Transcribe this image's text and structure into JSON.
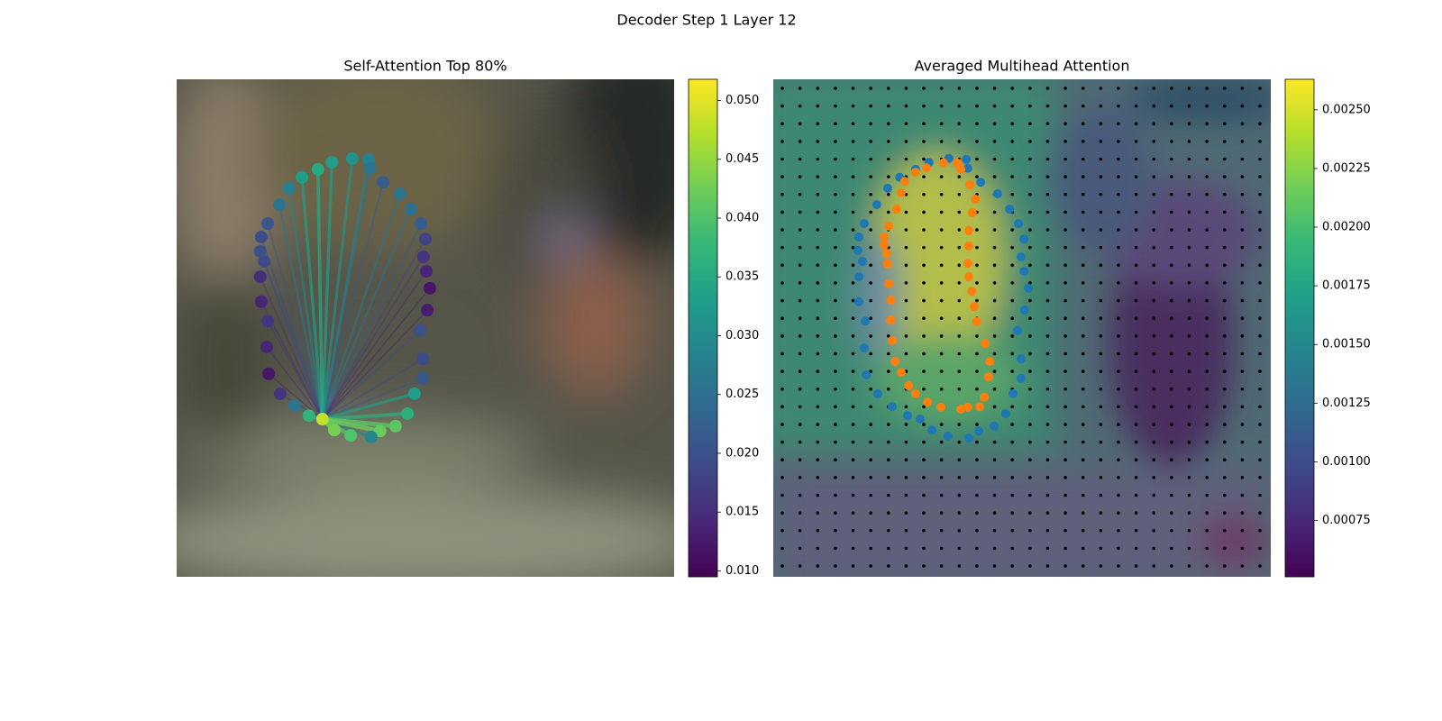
{
  "title": "Decoder Step 1 Layer 12",
  "chart_data": [
    {
      "type": "attention",
      "title": "Self-Attention Top 80%",
      "colormap": "viridis",
      "x": [
        35.3,
        38.6,
        38.9,
        41.5,
        44.9,
        47.1,
        49.1,
        50.0,
        49.6,
        50.2,
        50.9,
        50.4,
        48.9,
        49.5,
        49.5,
        47.8,
        46.4,
        44.0,
        40.9,
        39.1,
        35.0,
        31.7,
        29.3,
        26.6,
        23.7,
        20.8,
        18.5,
        18.1,
        18.3,
        17.0,
        16.8,
        17.6,
        16.8,
        17.0,
        18.3,
        20.7,
        22.6,
        25.2,
        28.4,
        31.2
      ],
      "y": [
        15.9,
        16.1,
        17.9,
        20.7,
        23.0,
        26.1,
        29.0,
        32.1,
        35.7,
        38.6,
        42.0,
        46.4,
        50.5,
        56.2,
        60.1,
        63.2,
        67.2,
        69.7,
        70.7,
        71.9,
        71.6,
        70.5,
        68.3,
        67.6,
        65.6,
        63.2,
        59.2,
        53.8,
        48.6,
        44.7,
        39.7,
        36.6,
        34.6,
        31.7,
        29.0,
        25.2,
        21.9,
        19.7,
        18.1,
        16.7
      ],
      "values": [
        0.031,
        0.028,
        0.026,
        0.022,
        0.026,
        0.025,
        0.022,
        0.018,
        0.016,
        0.014,
        0.012,
        0.013,
        0.02,
        0.019,
        0.021,
        0.033,
        0.036,
        0.041,
        0.042,
        0.029,
        0.04,
        0.043,
        0.048,
        0.037,
        0.026,
        0.016,
        0.012,
        0.014,
        0.016,
        0.014,
        0.015,
        0.019,
        0.02,
        0.019,
        0.021,
        0.026,
        0.028,
        0.033,
        0.035,
        0.033
      ],
      "clim": [
        0.0095,
        0.0518
      ],
      "cticks": [
        {
          "value": 0.01,
          "label": "0.010"
        },
        {
          "value": 0.015,
          "label": "0.015"
        },
        {
          "value": 0.02,
          "label": "0.020"
        },
        {
          "value": 0.025,
          "label": "0.025"
        },
        {
          "value": 0.03,
          "label": "0.030"
        },
        {
          "value": 0.035,
          "label": "0.035"
        },
        {
          "value": 0.04,
          "label": "0.040"
        },
        {
          "value": 0.045,
          "label": "0.045"
        },
        {
          "value": 0.05,
          "label": "0.050"
        }
      ]
    },
    {
      "type": "heatmap-scatter",
      "title": "Averaged Multihead Attention",
      "colormap": "viridis",
      "series": [
        {
          "color": "#1f77b4",
          "x": [
            35.3,
            38.8,
            39.1,
            41.7,
            45.1,
            47.5,
            49.3,
            50.4,
            49.8,
            50.4,
            51.3,
            50.5,
            49.1,
            49.8,
            49.8,
            48.2,
            46.7,
            44.4,
            41.3,
            39.3,
            35.1,
            31.9,
            29.5,
            27.0,
            23.9,
            21.0,
            18.7,
            18.3,
            18.5,
            17.2,
            17.2,
            17.9,
            17.0,
            17.2,
            18.3,
            20.8,
            23.0,
            25.4,
            28.6,
            31.3
          ],
          "y": [
            15.9,
            16.1,
            17.9,
            20.7,
            23.0,
            26.1,
            29.0,
            32.1,
            35.7,
            38.6,
            42.0,
            46.4,
            50.5,
            56.2,
            60.1,
            63.2,
            67.2,
            69.7,
            70.7,
            72.1,
            71.7,
            70.5,
            68.3,
            67.6,
            65.8,
            63.2,
            59.4,
            54.0,
            48.6,
            44.7,
            39.7,
            36.6,
            34.4,
            31.7,
            29.0,
            25.2,
            21.9,
            19.7,
            18.1,
            16.7
          ]
        },
        {
          "color": "#ff7f0e",
          "x": [
            34.2,
            37.0,
            37.7,
            39.5,
            40.6,
            40.0,
            39.3,
            39.3,
            39.1,
            39.3,
            39.9,
            40.4,
            40.9,
            42.6,
            43.5,
            43.3,
            42.4,
            41.5,
            39.1,
            37.7,
            33.7,
            31.0,
            28.6,
            27.2,
            25.7,
            24.5,
            23.9,
            23.6,
            23.7,
            23.2,
            23.0,
            22.8,
            22.3,
            22.3,
            23.2,
            24.8,
            25.7,
            26.4,
            28.6,
            30.8
          ],
          "y": [
            16.8,
            16.8,
            18.1,
            21.2,
            24.1,
            26.8,
            30.4,
            33.5,
            37.0,
            39.7,
            42.6,
            45.7,
            48.7,
            53.1,
            56.7,
            59.8,
            63.9,
            65.8,
            65.9,
            66.3,
            65.9,
            64.9,
            63.2,
            61.6,
            58.9,
            56.7,
            52.5,
            48.4,
            44.4,
            41.1,
            37.1,
            35.0,
            33.3,
            31.7,
            29.5,
            26.1,
            22.8,
            20.5,
            18.7,
            17.8
          ]
        }
      ],
      "clim": [
        0.00051,
        0.00263
      ],
      "cticks": [
        {
          "value": 0.00075,
          "label": "0.00075"
        },
        {
          "value": 0.001,
          "label": "0.00100"
        },
        {
          "value": 0.00125,
          "label": "0.00125"
        },
        {
          "value": 0.0015,
          "label": "0.00150"
        },
        {
          "value": 0.00175,
          "label": "0.00175"
        },
        {
          "value": 0.002,
          "label": "0.00200"
        },
        {
          "value": 0.00225,
          "label": "0.00225"
        },
        {
          "value": 0.0025,
          "label": "0.00250"
        }
      ]
    }
  ]
}
